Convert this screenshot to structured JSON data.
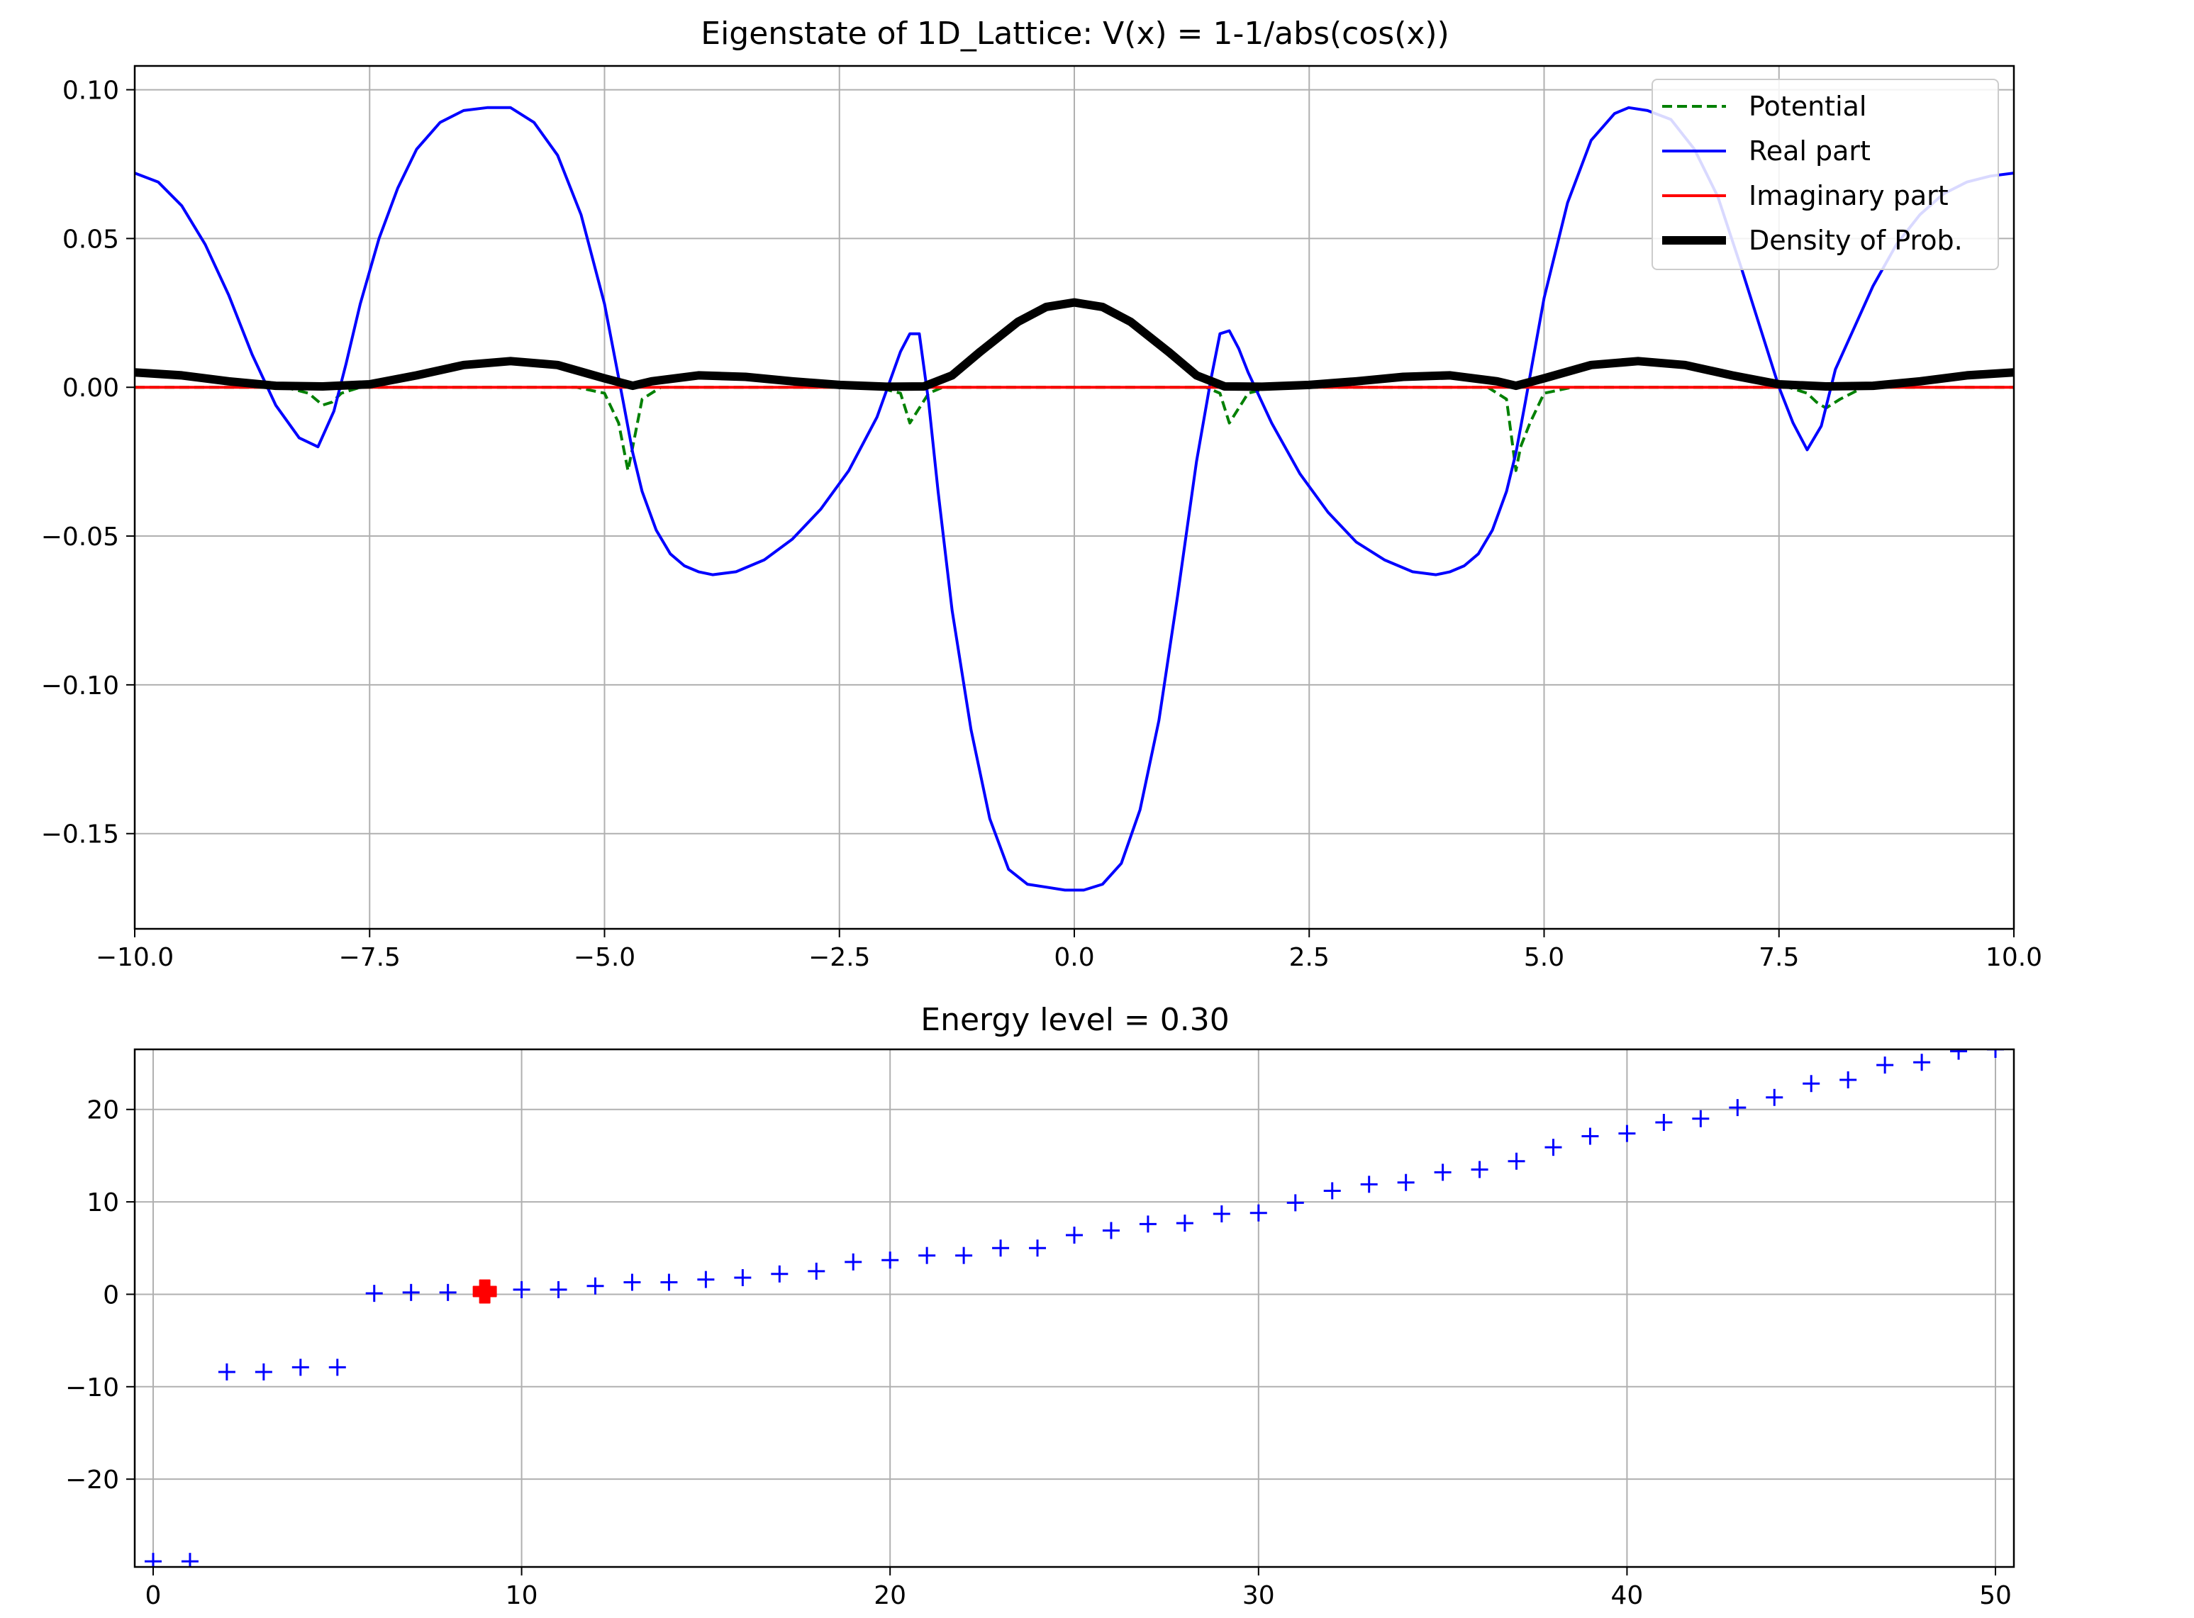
{
  "chart_data": [
    {
      "type": "line",
      "title": "Eigenstate of 1D_Lattice: V(x) = 1-1/abs(cos(x))",
      "xlabel": "",
      "ylabel": "",
      "xlim": [
        -10,
        10
      ],
      "ylim": [
        -0.182,
        0.108
      ],
      "xticks": [
        -10,
        -7.5,
        -5,
        -2.5,
        0,
        2.5,
        5,
        7.5,
        10
      ],
      "xtick_labels": [
        "−10.0",
        "−7.5",
        "−5.0",
        "−2.5",
        "0.0",
        "2.5",
        "5.0",
        "7.5",
        "10.0"
      ],
      "yticks": [
        0.1,
        0.05,
        0.0,
        -0.05,
        -0.1,
        -0.15
      ],
      "ytick_labels": [
        "0.10",
        "0.05",
        "0.00",
        "−0.05",
        "−0.10",
        "−0.15"
      ],
      "grid": true,
      "legend_position": "top-right",
      "series": [
        {
          "name": "Potential",
          "style": "dashed",
          "color": "#008000",
          "x": [
            -10,
            -8.4,
            -8.15,
            -8.0,
            -7.9,
            -7.8,
            -7.6,
            -5.3,
            -5.0,
            -4.85,
            -4.75,
            -4.7,
            -4.6,
            -4.4,
            -2.1,
            -1.85,
            -1.75,
            -1.65,
            -1.55,
            -1.4,
            1.4,
            1.55,
            1.65,
            1.75,
            1.85,
            2.1,
            4.4,
            4.6,
            4.7,
            4.75,
            4.85,
            5.0,
            5.3,
            7.6,
            7.8,
            7.9,
            8.0,
            8.15,
            8.4,
            10
          ],
          "y": [
            0.0,
            0.0,
            -0.002,
            -0.006,
            -0.005,
            -0.002,
            0.0,
            0.0,
            -0.002,
            -0.012,
            -0.028,
            -0.02,
            -0.004,
            0.0,
            0.0,
            -0.002,
            -0.012,
            -0.007,
            -0.002,
            0.0,
            0.0,
            -0.002,
            -0.012,
            -0.007,
            -0.002,
            0.0,
            0.0,
            -0.004,
            -0.028,
            -0.02,
            -0.012,
            -0.002,
            0.0,
            0.0,
            -0.002,
            -0.005,
            -0.007,
            -0.004,
            0.0,
            0.0
          ]
        },
        {
          "name": "Real part",
          "style": "solid",
          "color": "#0000ff",
          "x": [
            -10,
            -9.75,
            -9.5,
            -9.25,
            -9.0,
            -8.75,
            -8.5,
            -8.25,
            -8.05,
            -7.88,
            -7.75,
            -7.6,
            -7.4,
            -7.2,
            -7.0,
            -6.75,
            -6.5,
            -6.25,
            -6.0,
            -5.75,
            -5.5,
            -5.25,
            -5.0,
            -4.8,
            -4.7,
            -4.6,
            -4.45,
            -4.3,
            -4.15,
            -4.0,
            -3.85,
            -3.6,
            -3.3,
            -3.0,
            -2.7,
            -2.4,
            -2.1,
            -1.85,
            -1.75,
            -1.65,
            -1.55,
            -1.45,
            -1.3,
            -1.1,
            -0.9,
            -0.7,
            -0.5,
            -0.3,
            -0.1,
            0.0,
            0.1,
            0.3,
            0.5,
            0.7,
            0.9,
            1.1,
            1.3,
            1.45,
            1.55,
            1.65,
            1.75,
            1.85,
            2.1,
            2.4,
            2.7,
            3.0,
            3.3,
            3.6,
            3.85,
            4.0,
            4.15,
            4.3,
            4.45,
            4.6,
            4.7,
            4.8,
            5.0,
            5.25,
            5.5,
            5.75,
            5.9,
            6.1,
            6.35,
            6.6,
            6.85,
            7.1,
            7.3,
            7.5,
            7.65,
            7.8,
            7.95,
            8.1,
            8.3,
            8.5,
            8.75,
            9.0,
            9.25,
            9.5,
            9.75,
            10.0
          ],
          "y": [
            0.072,
            0.069,
            0.061,
            0.048,
            0.031,
            0.011,
            -0.006,
            -0.017,
            -0.02,
            -0.008,
            0.008,
            0.028,
            0.05,
            0.067,
            0.08,
            0.089,
            0.093,
            0.094,
            0.094,
            0.089,
            0.078,
            0.058,
            0.028,
            -0.005,
            -0.022,
            -0.035,
            -0.048,
            -0.056,
            -0.06,
            -0.062,
            -0.063,
            -0.062,
            -0.058,
            -0.051,
            -0.041,
            -0.028,
            -0.01,
            0.012,
            0.018,
            0.018,
            -0.005,
            -0.035,
            -0.075,
            -0.115,
            -0.145,
            -0.162,
            -0.167,
            -0.168,
            -0.169,
            -0.169,
            -0.169,
            -0.167,
            -0.16,
            -0.142,
            -0.112,
            -0.07,
            -0.025,
            0.002,
            0.018,
            0.019,
            0.013,
            0.005,
            -0.012,
            -0.029,
            -0.042,
            -0.052,
            -0.058,
            -0.062,
            -0.063,
            -0.062,
            -0.06,
            -0.056,
            -0.048,
            -0.035,
            -0.022,
            -0.005,
            0.03,
            0.062,
            0.083,
            0.092,
            0.094,
            0.093,
            0.09,
            0.08,
            0.064,
            0.04,
            0.02,
            0.0,
            -0.012,
            -0.021,
            -0.013,
            0.006,
            0.02,
            0.034,
            0.048,
            0.058,
            0.065,
            0.069,
            0.071,
            0.072
          ]
        },
        {
          "name": "Imaginary part",
          "style": "solid",
          "color": "#ff0000",
          "x": [
            -10,
            10
          ],
          "y": [
            0.0,
            0.0
          ]
        },
        {
          "name": "Density of Prob.",
          "style": "thick",
          "color": "#000000",
          "x": [
            -10,
            -9.5,
            -9.0,
            -8.5,
            -8.0,
            -7.5,
            -7.0,
            -6.5,
            -6.0,
            -5.5,
            -5.0,
            -4.7,
            -4.5,
            -4.0,
            -3.5,
            -3.0,
            -2.5,
            -2.0,
            -1.6,
            -1.3,
            -1.0,
            -0.6,
            -0.3,
            0.0,
            0.3,
            0.6,
            1.0,
            1.3,
            1.6,
            2.0,
            2.5,
            3.0,
            3.5,
            4.0,
            4.5,
            4.7,
            5.0,
            5.5,
            6.0,
            6.5,
            7.0,
            7.5,
            8.0,
            8.5,
            9.0,
            9.5,
            10.0
          ],
          "y": [
            0.005,
            0.004,
            0.002,
            0.0005,
            0.0003,
            0.001,
            0.004,
            0.0075,
            0.0088,
            0.0075,
            0.003,
            0.0005,
            0.002,
            0.004,
            0.0035,
            0.002,
            0.0008,
            0.0002,
            0.0003,
            0.004,
            0.012,
            0.022,
            0.027,
            0.0285,
            0.027,
            0.022,
            0.012,
            0.004,
            0.0003,
            0.0002,
            0.0008,
            0.002,
            0.0035,
            0.004,
            0.002,
            0.0005,
            0.003,
            0.0075,
            0.0088,
            0.0075,
            0.004,
            0.001,
            0.0003,
            0.0005,
            0.002,
            0.004,
            0.005
          ]
        }
      ]
    },
    {
      "type": "scatter",
      "title": "Energy level = 0.30",
      "xlabel": "",
      "ylabel": "",
      "xlim": [
        -0.5,
        50.5
      ],
      "ylim": [
        -29.5,
        26.5
      ],
      "xticks": [
        0,
        10,
        20,
        30,
        40,
        50
      ],
      "xtick_labels": [
        "0",
        "10",
        "20",
        "30",
        "40",
        "50"
      ],
      "yticks": [
        20,
        10,
        0,
        -10,
        -20
      ],
      "ytick_labels": [
        "20",
        "10",
        "0",
        "−10",
        "−20"
      ],
      "grid": true,
      "marker_color": "#0000ff",
      "highlight_color": "#ff0000",
      "highlight_index": 9,
      "x": [
        0,
        1,
        2,
        3,
        4,
        5,
        6,
        7,
        8,
        9,
        10,
        11,
        12,
        13,
        14,
        15,
        16,
        17,
        18,
        19,
        20,
        21,
        22,
        23,
        24,
        25,
        26,
        27,
        28,
        29,
        30,
        31,
        32,
        33,
        34,
        35,
        36,
        37,
        38,
        39,
        40,
        41,
        42,
        43,
        44,
        45,
        46,
        47,
        48,
        49,
        50
      ],
      "y": [
        -28.9,
        -28.9,
        -8.4,
        -8.4,
        -7.9,
        -7.9,
        0.1,
        0.2,
        0.2,
        0.3,
        0.5,
        0.5,
        0.9,
        1.3,
        1.3,
        1.6,
        1.8,
        2.2,
        2.5,
        3.5,
        3.7,
        4.2,
        4.2,
        5.0,
        5.0,
        6.4,
        6.9,
        7.6,
        7.7,
        8.7,
        8.8,
        9.9,
        11.2,
        11.9,
        12.1,
        13.2,
        13.5,
        14.4,
        15.9,
        17.1,
        17.4,
        18.6,
        19.0,
        20.2,
        21.3,
        22.8,
        23.2,
        24.8,
        25.1,
        26.3,
        26.5
      ]
    }
  ]
}
